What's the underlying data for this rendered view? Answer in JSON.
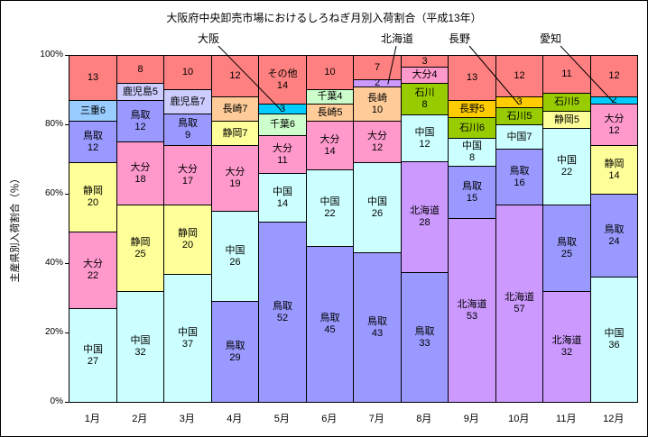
{
  "title": "大阪府中央卸売市場におけるしろねぎ月別入荷割合（平成13年）",
  "y_axis_title": "主産県別入荷割合（％）",
  "colors": {
    "中国": "#CCFFFF",
    "大分": "#FF99CC",
    "静岡": "#FFFF99",
    "鳥取": "#9999FF",
    "三重": "#99CCFF",
    "鹿児島": "#CCCCFF",
    "長崎": "#FFCC99",
    "千葉": "#CCFFCC",
    "大阪": "#00CCFF",
    "愛知": "#00CCFF",
    "北海道": "#CC99FF",
    "石川": "#99CC00",
    "長野": "#FFCC00",
    "その他": "#FF8080"
  },
  "chart_data": {
    "type": "bar",
    "stacked": "100%",
    "title": "大阪府中央卸売市場におけるしろねぎ月別入荷割合（平成13年）",
    "ylabel": "主産県別入荷割合（％）",
    "ylim": [
      0,
      100
    ],
    "ytick_values": [
      0,
      20,
      40,
      60,
      80,
      100
    ],
    "ytick_labels": [
      "0%",
      "20%",
      "40%",
      "60%",
      "80%",
      "100%"
    ],
    "categories": [
      "1月",
      "2月",
      "3月",
      "4月",
      "5月",
      "6月",
      "7月",
      "8月",
      "9月",
      "10月",
      "11月",
      "12月"
    ],
    "columns": [
      {
        "month": "1月",
        "segments": [
          {
            "name": "中国",
            "value": 27,
            "lines": [
              "中国",
              "27"
            ]
          },
          {
            "name": "大分",
            "value": 22,
            "lines": [
              "大分",
              "22"
            ]
          },
          {
            "name": "静岡",
            "value": 20,
            "lines": [
              "静岡",
              "20"
            ]
          },
          {
            "name": "鳥取",
            "value": 12,
            "lines": [
              "鳥取",
              "12"
            ]
          },
          {
            "name": "三重",
            "value": 6,
            "lines": [
              "三重6"
            ]
          },
          {
            "name": "その他",
            "value": 13,
            "lines": [
              "13"
            ]
          }
        ]
      },
      {
        "month": "2月",
        "segments": [
          {
            "name": "中国",
            "value": 32,
            "lines": [
              "中国",
              "32"
            ]
          },
          {
            "name": "静岡",
            "value": 25,
            "lines": [
              "静岡",
              "25"
            ]
          },
          {
            "name": "大分",
            "value": 18,
            "lines": [
              "大分",
              "18"
            ]
          },
          {
            "name": "鳥取",
            "value": 12,
            "lines": [
              "鳥取",
              "12"
            ]
          },
          {
            "name": "鹿児島",
            "value": 5,
            "lines": [
              "鹿児島5"
            ]
          },
          {
            "name": "その他",
            "value": 8,
            "lines": [
              "8"
            ]
          }
        ]
      },
      {
        "month": "3月",
        "segments": [
          {
            "name": "中国",
            "value": 37,
            "lines": [
              "中国",
              "37"
            ]
          },
          {
            "name": "静岡",
            "value": 20,
            "lines": [
              "静岡",
              "20"
            ]
          },
          {
            "name": "大分",
            "value": 17,
            "lines": [
              "大分",
              "17"
            ]
          },
          {
            "name": "鳥取",
            "value": 9,
            "lines": [
              "鳥取",
              "9"
            ]
          },
          {
            "name": "鹿児島",
            "value": 7,
            "lines": [
              "鹿児島7"
            ]
          },
          {
            "name": "その他",
            "value": 10,
            "lines": [
              "10"
            ]
          }
        ]
      },
      {
        "month": "4月",
        "segments": [
          {
            "name": "鳥取",
            "value": 29,
            "lines": [
              "鳥取",
              "29"
            ]
          },
          {
            "name": "中国",
            "value": 26,
            "lines": [
              "中国",
              "26"
            ]
          },
          {
            "name": "大分",
            "value": 19,
            "lines": [
              "大分",
              "19"
            ]
          },
          {
            "name": "静岡",
            "value": 7,
            "lines": [
              "静岡7"
            ]
          },
          {
            "name": "長崎",
            "value": 7,
            "lines": [
              "長崎7"
            ]
          },
          {
            "name": "その他",
            "value": 12,
            "lines": [
              "12"
            ]
          }
        ]
      },
      {
        "month": "5月",
        "segments": [
          {
            "name": "鳥取",
            "value": 52,
            "lines": [
              "鳥取",
              "52"
            ]
          },
          {
            "name": "中国",
            "value": 14,
            "lines": [
              "中国",
              "14"
            ]
          },
          {
            "name": "大分",
            "value": 11,
            "lines": [
              "大分",
              "11"
            ]
          },
          {
            "name": "千葉",
            "value": 6,
            "lines": [
              "千葉6"
            ]
          },
          {
            "name": "大阪",
            "value": 3,
            "lines": [
              "3"
            ]
          },
          {
            "name": "その他",
            "value": 14,
            "lines": [
              "その他",
              "14"
            ]
          }
        ]
      },
      {
        "month": "6月",
        "segments": [
          {
            "name": "鳥取",
            "value": 45,
            "lines": [
              "鳥取",
              "45"
            ]
          },
          {
            "name": "中国",
            "value": 22,
            "lines": [
              "中国",
              "22"
            ]
          },
          {
            "name": "大分",
            "value": 14,
            "lines": [
              "大分",
              "14"
            ]
          },
          {
            "name": "長崎",
            "value": 5,
            "lines": [
              "長崎5"
            ]
          },
          {
            "name": "千葉",
            "value": 4,
            "lines": [
              "千葉4"
            ]
          },
          {
            "name": "その他",
            "value": 10,
            "lines": [
              "10"
            ]
          }
        ]
      },
      {
        "month": "7月",
        "segments": [
          {
            "name": "鳥取",
            "value": 43,
            "lines": [
              "鳥取",
              "43"
            ]
          },
          {
            "name": "中国",
            "value": 26,
            "lines": [
              "中国",
              "26"
            ]
          },
          {
            "name": "大分",
            "value": 12,
            "lines": [
              "大分",
              "12"
            ]
          },
          {
            "name": "長崎",
            "value": 10,
            "lines": [
              "長崎",
              "10"
            ]
          },
          {
            "name": "北海道",
            "value": 2,
            "lines": [
              "2"
            ]
          },
          {
            "name": "その他",
            "value": 7,
            "lines": [
              "7"
            ]
          }
        ]
      },
      {
        "month": "8月",
        "segments": [
          {
            "name": "鳥取",
            "value": 33,
            "lines": [
              "鳥取",
              "33"
            ]
          },
          {
            "name": "北海道",
            "value": 28,
            "lines": [
              "北海道",
              "28"
            ]
          },
          {
            "name": "中国",
            "value": 12,
            "lines": [
              "中国",
              "12"
            ]
          },
          {
            "name": "石川",
            "value": 8,
            "lines": [
              "石川",
              "8"
            ]
          },
          {
            "name": "大分",
            "value": 4,
            "lines": [
              "大分4"
            ]
          },
          {
            "name": "その他",
            "value": 3,
            "lines": [
              "3"
            ]
          }
        ]
      },
      {
        "month": "9月",
        "segments": [
          {
            "name": "北海道",
            "value": 53,
            "lines": [
              "北海道",
              "53"
            ]
          },
          {
            "name": "鳥取",
            "value": 15,
            "lines": [
              "鳥取",
              "15"
            ]
          },
          {
            "name": "中国",
            "value": 8,
            "lines": [
              "中国",
              "8"
            ]
          },
          {
            "name": "石川",
            "value": 6,
            "lines": [
              "石川6"
            ]
          },
          {
            "name": "長野",
            "value": 5,
            "lines": [
              "長野5"
            ]
          },
          {
            "name": "その他",
            "value": 13,
            "lines": [
              "13"
            ]
          }
        ]
      },
      {
        "month": "10月",
        "segments": [
          {
            "name": "北海道",
            "value": 57,
            "lines": [
              "北海道",
              "57"
            ]
          },
          {
            "name": "鳥取",
            "value": 16,
            "lines": [
              "鳥取",
              "16"
            ]
          },
          {
            "name": "中国",
            "value": 7,
            "lines": [
              "中国7"
            ]
          },
          {
            "name": "石川",
            "value": 5,
            "lines": [
              "石川5"
            ]
          },
          {
            "name": "長野",
            "value": 3,
            "lines": [
              "3"
            ]
          },
          {
            "name": "その他",
            "value": 12,
            "lines": [
              "12"
            ]
          }
        ]
      },
      {
        "month": "11月",
        "segments": [
          {
            "name": "北海道",
            "value": 32,
            "lines": [
              "北海道",
              "32"
            ]
          },
          {
            "name": "鳥取",
            "value": 25,
            "lines": [
              "鳥取",
              "25"
            ]
          },
          {
            "name": "中国",
            "value": 22,
            "lines": [
              "中国",
              "22"
            ]
          },
          {
            "name": "静岡",
            "value": 5,
            "lines": [
              "静岡5"
            ]
          },
          {
            "name": "石川",
            "value": 5,
            "lines": [
              "石川5"
            ]
          },
          {
            "name": "その他",
            "value": 11,
            "lines": [
              "11"
            ]
          }
        ]
      },
      {
        "month": "12月",
        "segments": [
          {
            "name": "中国",
            "value": 36,
            "lines": [
              "中国",
              "36"
            ]
          },
          {
            "name": "鳥取",
            "value": 24,
            "lines": [
              "鳥取",
              "24"
            ]
          },
          {
            "name": "静岡",
            "value": 14,
            "lines": [
              "静岡",
              "14"
            ]
          },
          {
            "name": "大分",
            "value": 12,
            "lines": [
              "大分",
              "12"
            ]
          },
          {
            "name": "愛知",
            "value": 2,
            "lines": [
              "2"
            ]
          },
          {
            "name": "その他",
            "value": 12,
            "lines": [
              "12"
            ]
          }
        ]
      }
    ],
    "annotations": [
      {
        "label": "大阪",
        "month": "5月",
        "series": "大阪"
      },
      {
        "label": "北海道",
        "month": "7月",
        "series": "北海道"
      },
      {
        "label": "長野",
        "month": "10月",
        "series": "長野"
      },
      {
        "label": "愛知",
        "month": "12月",
        "series": "愛知"
      }
    ]
  }
}
